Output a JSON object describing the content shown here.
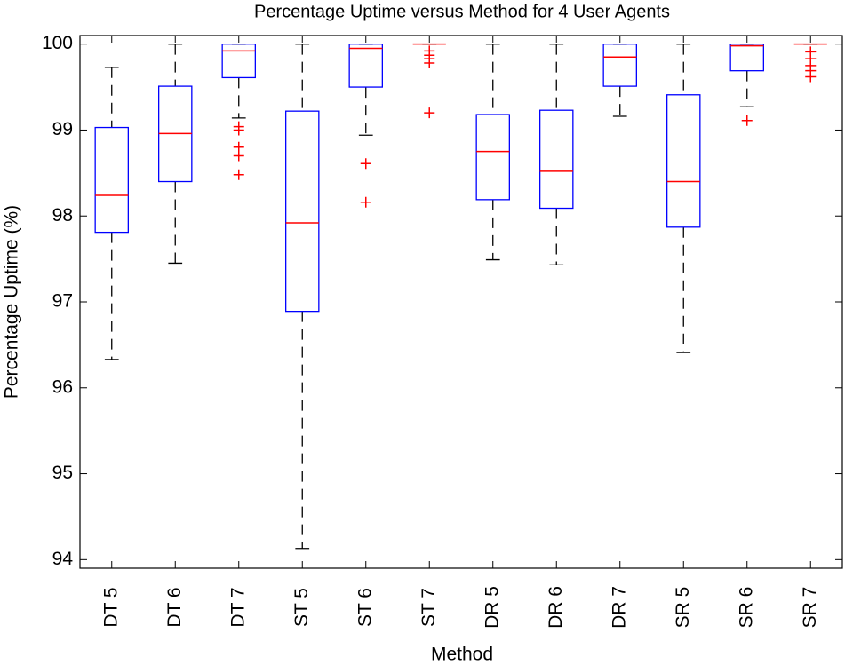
{
  "chart_data": {
    "type": "box",
    "title": "Percentage Uptime versus Method for 4 User Agents",
    "x_label": "Method",
    "y_label": "Percentage Uptime (%)",
    "categories": [
      "DT 5",
      "DT 6",
      "DT 7",
      "ST 5",
      "ST 6",
      "ST 7",
      "DR 5",
      "DR 6",
      "DR 7",
      "SR 5",
      "SR 6",
      "SR 7"
    ],
    "whisker_low": [
      96.33,
      97.45,
      99.14,
      94.13,
      98.94,
      100,
      97.49,
      97.43,
      99.16,
      96.41,
      99.27,
      100
    ],
    "q1": [
      97.81,
      98.4,
      99.61,
      96.89,
      99.5,
      100,
      98.19,
      98.09,
      99.51,
      97.87,
      99.69,
      100
    ],
    "median": [
      98.24,
      98.96,
      99.92,
      97.92,
      99.95,
      100,
      98.75,
      98.52,
      99.85,
      98.4,
      99.98,
      100
    ],
    "q3": [
      99.03,
      99.51,
      100,
      99.22,
      100,
      100,
      99.18,
      99.23,
      100,
      99.41,
      100,
      100
    ],
    "whisker_high": [
      99.73,
      100,
      100,
      100,
      100,
      100,
      100,
      100,
      100,
      100,
      100,
      100
    ],
    "outliers": [
      [],
      [],
      [
        99.04,
        99.0,
        98.8,
        98.7,
        98.48
      ],
      [],
      [
        98.61,
        98.16
      ],
      [
        99.92,
        99.87,
        99.83,
        99.78,
        99.2
      ],
      [],
      [],
      [],
      [],
      [
        99.11
      ],
      [
        99.91,
        99.83,
        99.75,
        99.69,
        99.62
      ]
    ],
    "box_color": "#0000ff",
    "median_color": "#ff0000",
    "whisker_color": "#000000",
    "outlier_color": "#ff0000",
    "ylim": [
      93.9,
      100.1
    ],
    "yticks": [
      94,
      95,
      96,
      97,
      98,
      99,
      100
    ],
    "grid": false
  }
}
